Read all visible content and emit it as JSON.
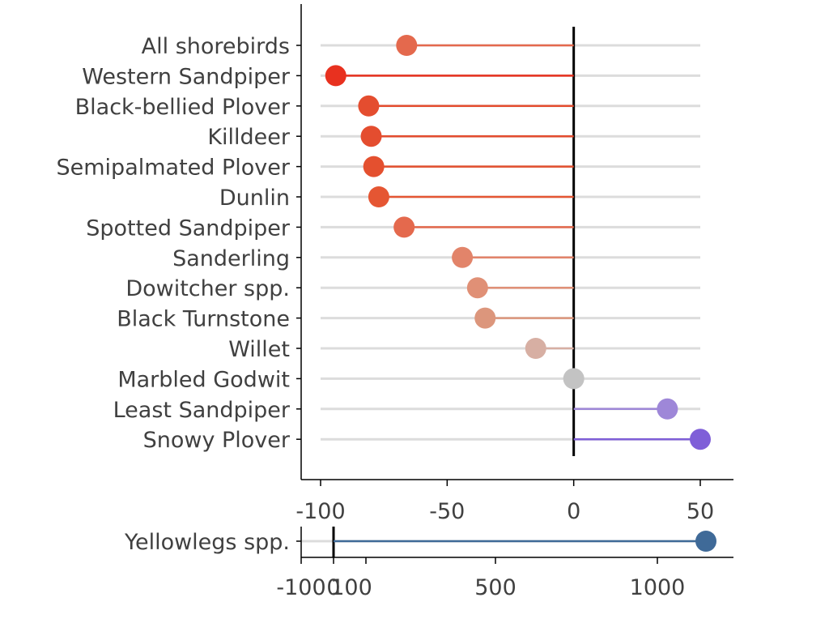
{
  "chart_data": [
    {
      "type": "lollipop",
      "orientation": "horizontal",
      "categories": [
        "All shorebirds",
        "Western Sandpiper",
        "Black-bellied Plover",
        "Killdeer",
        "Semipalmated Plover",
        "Dunlin",
        "Spotted Sandpiper",
        "Sanderling",
        "Dowitcher spp.",
        "Black Turnstone",
        "Willet",
        "Marbled Godwit",
        "Least Sandpiper",
        "Snowy Plover"
      ],
      "values": [
        -66,
        -94,
        -81,
        -80,
        -79,
        -77,
        -67,
        -44,
        -38,
        -35,
        -15,
        0,
        37,
        50
      ],
      "colors": [
        "#e4694d",
        "#e8311f",
        "#e44d2f",
        "#e44d2f",
        "#e4502f",
        "#e55633",
        "#e4694d",
        "#e2846a",
        "#e09076",
        "#dc967c",
        "#d7afa3",
        "#c3c3c3",
        "#9e87d8",
        "#7f5fd8"
      ],
      "xlim": [
        -107,
        63
      ],
      "xticks": [
        "-100",
        "-50",
        "0",
        "50"
      ],
      "xtick_values": [
        -100,
        -50,
        0,
        50
      ],
      "reference_line": 0,
      "grid": "category rows",
      "legend": "none"
    },
    {
      "type": "lollipop",
      "orientation": "horizontal",
      "categories": [
        "Yellowlegs spp."
      ],
      "values": [
        1150
      ],
      "colors": [
        "#3f6a98"
      ],
      "xlim": [
        -150,
        1300
      ],
      "xticks": [
        "-100",
        "0",
        "100",
        "500",
        "1000"
      ],
      "xtick_values": [
        -100,
        0,
        100,
        500,
        1000
      ],
      "reference_line": 0,
      "grid": "category rows",
      "legend": "none"
    }
  ]
}
